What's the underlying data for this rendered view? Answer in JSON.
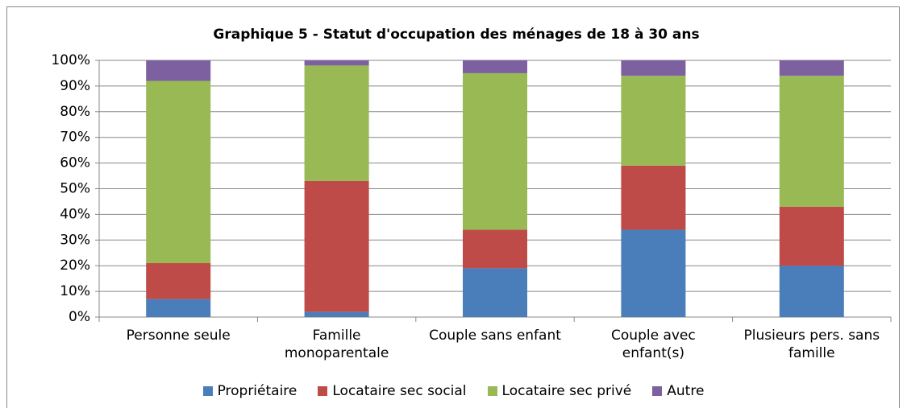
{
  "chart_data": {
    "type": "stacked_bar",
    "title": "Graphique 5 - Statut d'occupation des ménages de 18 à 30 ans",
    "categories": [
      "Personne seule",
      "Famille monoparentale",
      "Couple sans enfant",
      "Couple avec enfant(s)",
      "Plusieurs pers. sans famille"
    ],
    "series": [
      {
        "name": "Propriétaire",
        "color": "#4a7ebb",
        "values": [
          7,
          2,
          19,
          34,
          20
        ]
      },
      {
        "name": "Locataire sec social",
        "color": "#be4b48",
        "values": [
          14,
          51,
          15,
          25,
          23
        ]
      },
      {
        "name": "Locataire sec privé",
        "color": "#98b954",
        "values": [
          71,
          45,
          61,
          35,
          51
        ]
      },
      {
        "name": "Autre",
        "color": "#7d60a0",
        "values": [
          8,
          2,
          5,
          6,
          6
        ]
      }
    ],
    "ylim": [
      0,
      100
    ],
    "yticks": [
      {
        "value": 0,
        "label": "0%"
      },
      {
        "value": 10,
        "label": "10%"
      },
      {
        "value": 20,
        "label": "20%"
      },
      {
        "value": 30,
        "label": "30%"
      },
      {
        "value": 40,
        "label": "40%"
      },
      {
        "value": 50,
        "label": "50%"
      },
      {
        "value": 60,
        "label": "60%"
      },
      {
        "value": 70,
        "label": "70%"
      },
      {
        "value": 80,
        "label": "80%"
      },
      {
        "value": 90,
        "label": "90%"
      },
      {
        "value": 100,
        "label": "100%"
      }
    ],
    "grid": true
  }
}
